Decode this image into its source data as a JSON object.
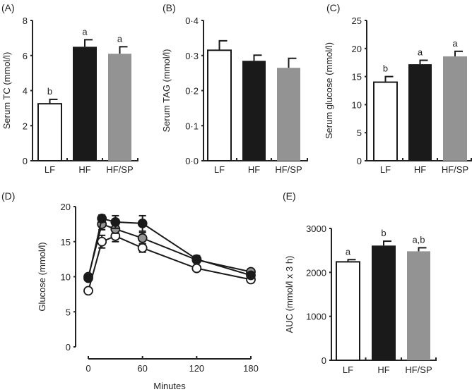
{
  "chart_data": [
    {
      "type": "bar",
      "panel_label": "(A)",
      "ylabel": "Serum TC (mmol/l)",
      "xlabel": "",
      "categories": [
        "LF",
        "HF",
        "HF/SP"
      ],
      "values": [
        3.25,
        6.5,
        6.1
      ],
      "errors": [
        0.25,
        0.4,
        0.4
      ],
      "letters": [
        "b",
        "a",
        "a"
      ],
      "ylim": [
        0,
        8
      ],
      "yticks": [
        0,
        2,
        4,
        6,
        8
      ],
      "ytick_labels": [
        "0",
        "2",
        "4",
        "6",
        "8"
      ],
      "colors": [
        "#ffffff",
        "#1a1a1a",
        "#939393"
      ],
      "grid": false
    },
    {
      "type": "bar",
      "panel_label": "(B)",
      "ylabel": "Serum TAG (mmol/l)",
      "xlabel": "",
      "categories": [
        "LF",
        "HF",
        "HF/SP"
      ],
      "values": [
        0.315,
        0.285,
        0.265
      ],
      "errors": [
        0.027,
        0.016,
        0.027
      ],
      "letters": [
        "",
        "",
        ""
      ],
      "ylim": [
        0,
        0.4
      ],
      "yticks": [
        0,
        0.1,
        0.2,
        0.3,
        0.4
      ],
      "ytick_labels": [
        "0·0",
        "0·1",
        "0·2",
        "0·3",
        "0·4"
      ],
      "colors": [
        "#ffffff",
        "#1a1a1a",
        "#939393"
      ],
      "grid": false
    },
    {
      "type": "bar",
      "panel_label": "(C)",
      "ylabel": "Serum glucose (mmol/l)",
      "xlabel": "",
      "categories": [
        "LF",
        "HF",
        "HF/SP"
      ],
      "values": [
        14.0,
        17.2,
        18.6
      ],
      "errors": [
        1.0,
        0.7,
        0.9
      ],
      "letters": [
        "b",
        "a",
        "a"
      ],
      "ylim": [
        0,
        25
      ],
      "yticks": [
        0,
        5,
        10,
        15,
        20,
        25
      ],
      "ytick_labels": [
        "0",
        "5",
        "10",
        "15",
        "20",
        "25"
      ],
      "colors": [
        "#ffffff",
        "#1a1a1a",
        "#939393"
      ],
      "grid": false
    },
    {
      "type": "line",
      "panel_label": "(D)",
      "ylabel": "Glucose (mmol/l)",
      "xlabel": "Minutes",
      "x": [
        0,
        15,
        30,
        60,
        120,
        180
      ],
      "series": [
        {
          "group": "LF",
          "color": "#ffffff",
          "values": [
            8.0,
            15.0,
            15.8,
            14.1,
            11.2,
            9.6
          ],
          "errors": [
            0.1,
            0.9,
            0.8,
            0.6,
            0.3,
            0.2
          ]
        },
        {
          "group": "HF/SP",
          "color": "#939393",
          "values": [
            10.0,
            17.5,
            16.8,
            15.5,
            12.4,
            10.7
          ],
          "errors": [
            0.3,
            0.8,
            0.6,
            0.8,
            0.4,
            0.3
          ]
        },
        {
          "group": "HF",
          "color": "#1a1a1a",
          "values": [
            9.8,
            18.3,
            17.8,
            17.6,
            12.5,
            10.2
          ],
          "errors": [
            0.3,
            0.5,
            0.9,
            1.1,
            0.5,
            0.3
          ]
        }
      ],
      "xlim": [
        0,
        180
      ],
      "xticks": [
        0,
        60,
        120,
        180
      ],
      "xtick_labels": [
        "0",
        "60",
        "120",
        "180"
      ],
      "ylim": [
        0,
        20
      ],
      "yticks": [
        0,
        5,
        10,
        15,
        20
      ],
      "ytick_labels": [
        "0",
        "5",
        "10",
        "15",
        "20"
      ],
      "grid": false
    },
    {
      "type": "bar",
      "panel_label": "(E)",
      "ylabel": "AUC (mmol/l x 3 h)",
      "xlabel": "",
      "categories": [
        "LF",
        "HF",
        "HF/SP"
      ],
      "values": [
        2240,
        2610,
        2480
      ],
      "errors": [
        50,
        100,
        80
      ],
      "letters": [
        "a",
        "b",
        "a,b"
      ],
      "ylim": [
        0,
        3000
      ],
      "yticks": [
        0,
        1000,
        2000,
        3000
      ],
      "ytick_labels": [
        "0",
        "1000",
        "2000",
        "3000"
      ],
      "colors": [
        "#ffffff",
        "#1a1a1a",
        "#939393"
      ],
      "grid": false
    }
  ]
}
